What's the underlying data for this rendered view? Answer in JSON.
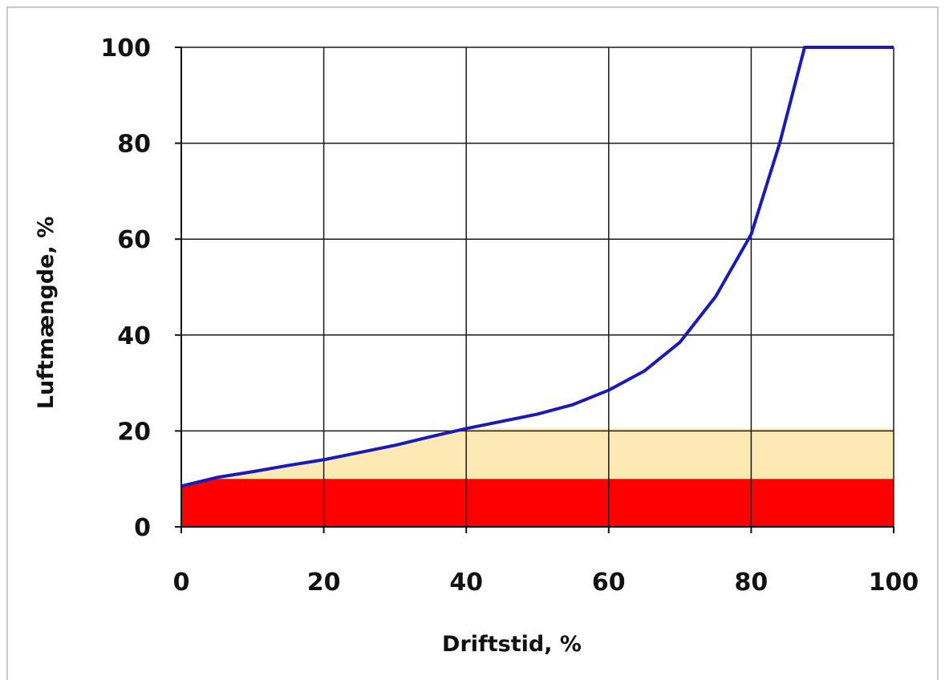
{
  "chart_data": {
    "type": "line",
    "xlabel": "Driftstid, %",
    "ylabel": "Luftmængde, %",
    "xlim": [
      0,
      100
    ],
    "ylim": [
      0,
      100
    ],
    "x_ticks": [
      "0",
      "20",
      "40",
      "60",
      "80",
      "100"
    ],
    "y_ticks": [
      "0",
      "20",
      "40",
      "60",
      "80",
      "100"
    ],
    "grid": true,
    "series": [
      {
        "color": "#1a1ab4",
        "points": [
          [
            0,
            8.5
          ],
          [
            5,
            10.3
          ],
          [
            10,
            11.5
          ],
          [
            15,
            12.8
          ],
          [
            20,
            14
          ],
          [
            25,
            15.5
          ],
          [
            30,
            17
          ],
          [
            35,
            18.8
          ],
          [
            40,
            20.5
          ],
          [
            45,
            22
          ],
          [
            50,
            23.5
          ],
          [
            55,
            25.5
          ],
          [
            60,
            28.5
          ],
          [
            65,
            32.5
          ],
          [
            70,
            38.5
          ],
          [
            75,
            48
          ],
          [
            80,
            61
          ],
          [
            84,
            80
          ],
          [
            87.5,
            100
          ],
          [
            100,
            100
          ]
        ]
      }
    ],
    "regions": [
      {
        "color": "#fde9b4",
        "x_range": [
          0,
          100
        ],
        "y_range": [
          0,
          20.5
        ],
        "follows_curve_until_x": 40
      },
      {
        "color": "#ff0000",
        "x_range": [
          0,
          100
        ],
        "y_range": [
          0,
          10
        ],
        "follows_curve_until_x": 3.5
      }
    ]
  }
}
